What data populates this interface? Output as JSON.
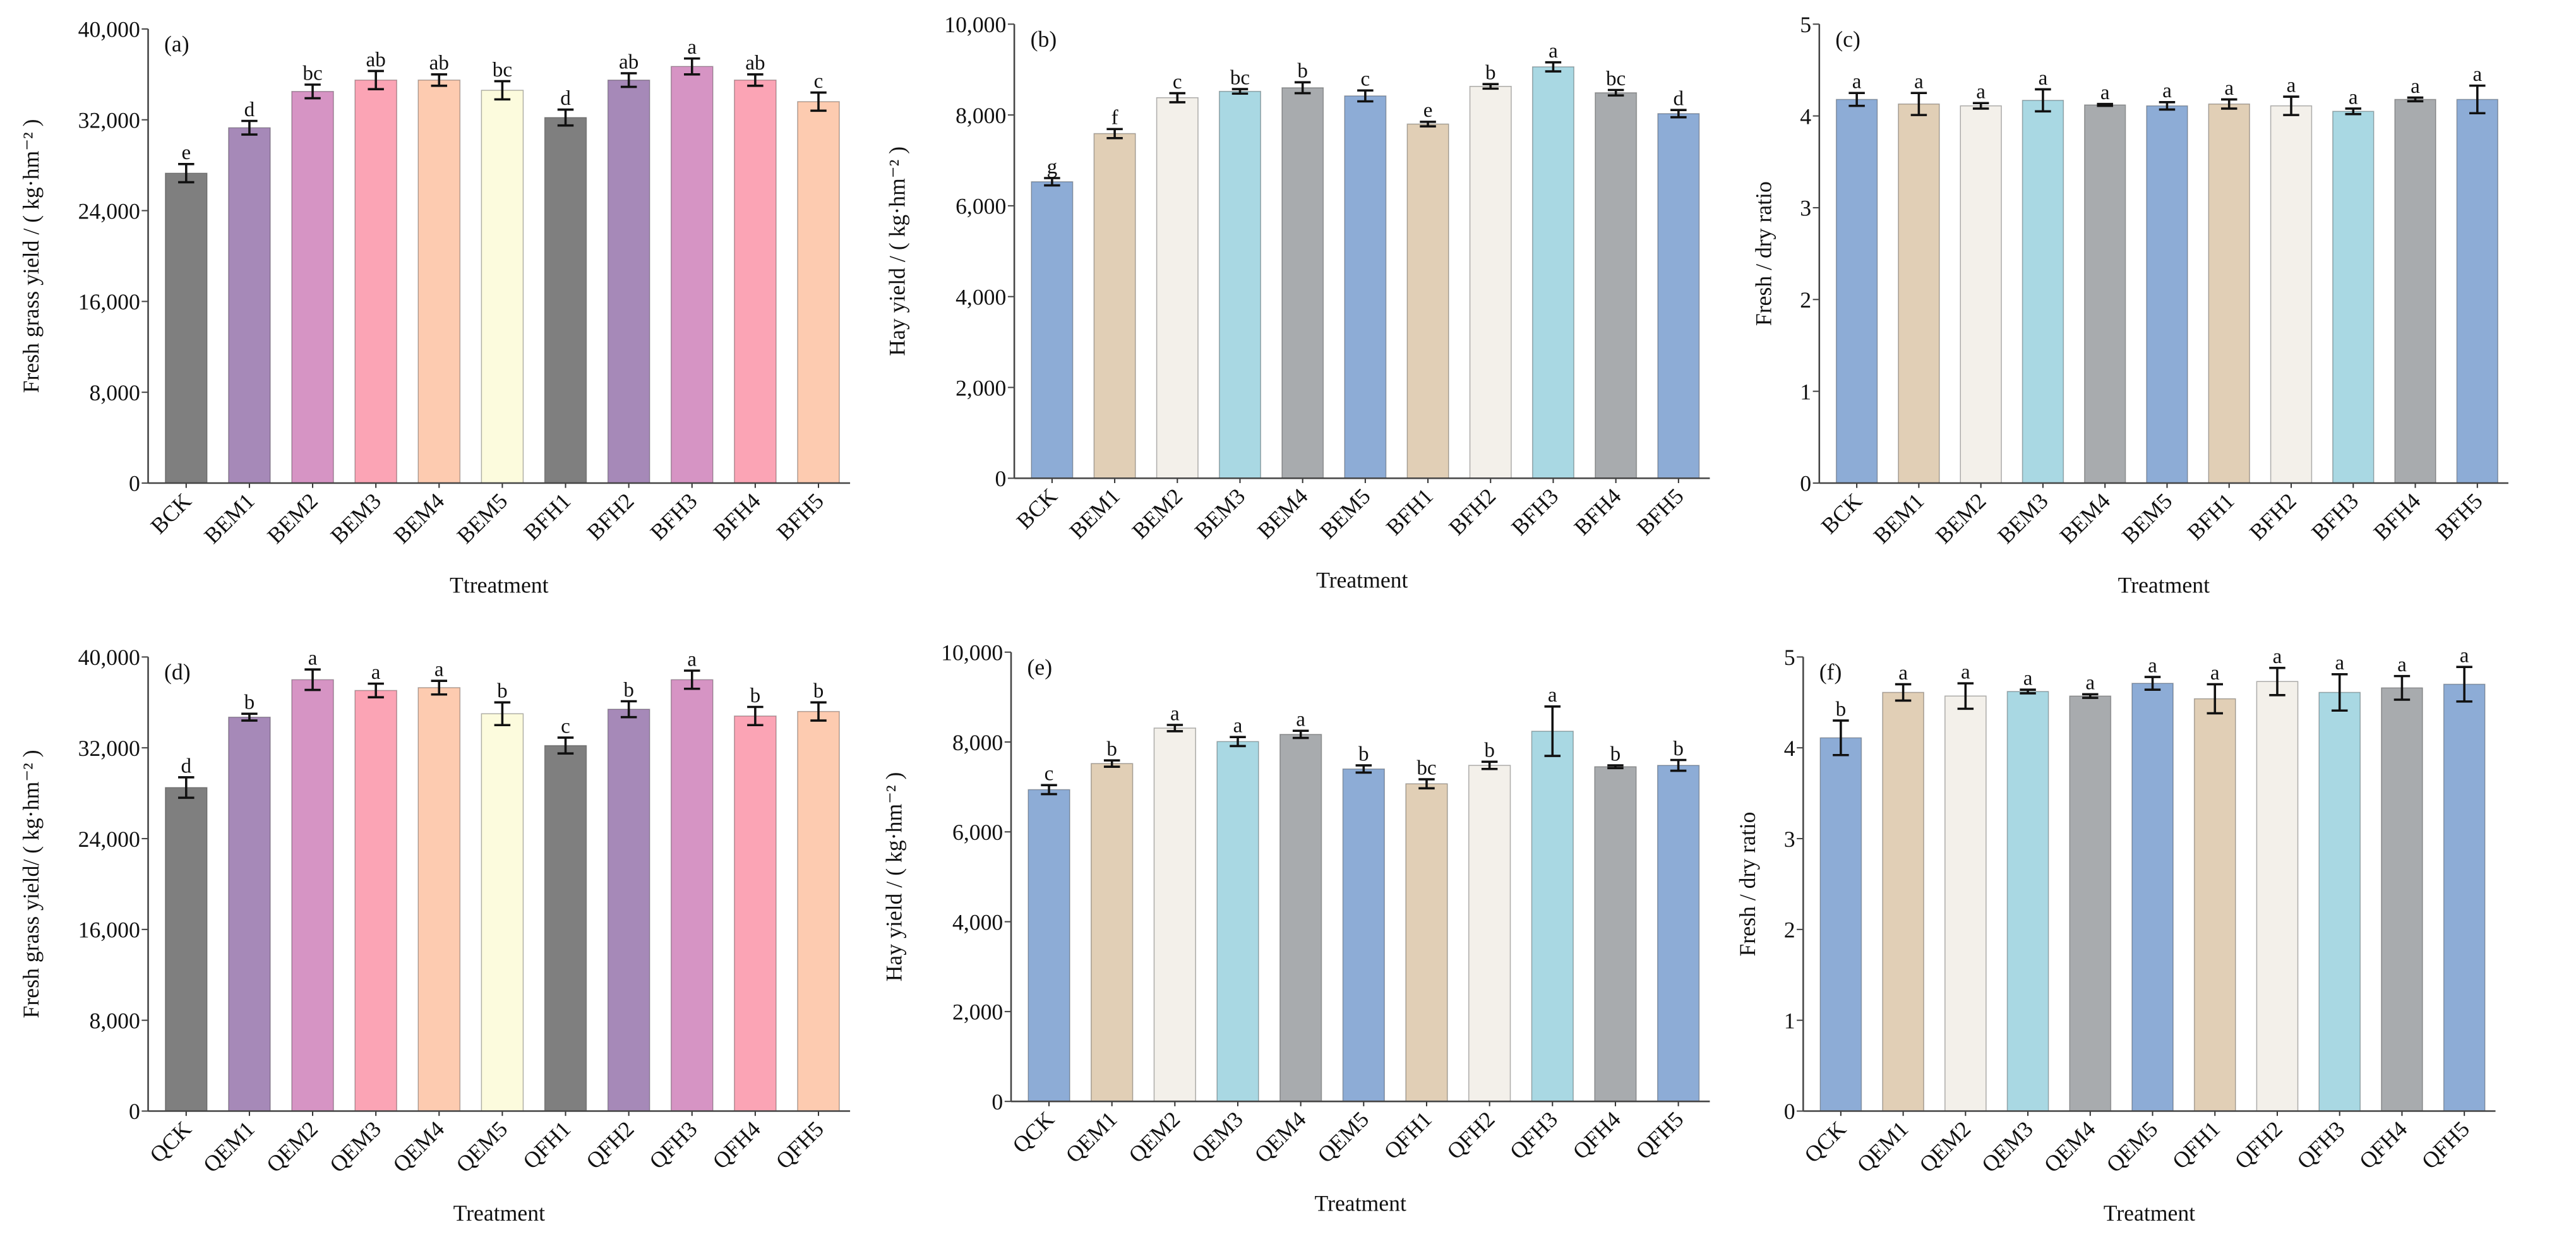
{
  "colors": {
    "dark_gray": "#7f7f7f",
    "purple": "#a689b8",
    "pink": "#d694c4",
    "rose": "#fba4b5",
    "peach": "#fdcbb0",
    "cream": "#fcfbdd",
    "blue": "#8dacd6",
    "tan": "#e1cfb6",
    "off_white": "#f3f0ea",
    "cyan": "#a9d8e3",
    "gray": "#a8abae"
  },
  "chart_data": [
    {
      "type": "bar",
      "panel": "(a)",
      "categories": [
        "BCK",
        "BEM1",
        "BEM2",
        "BEM3",
        "BEM4",
        "BEM5",
        "BFH1",
        "BFH2",
        "BFH3",
        "BFH4",
        "BFH5"
      ],
      "values": [
        27300,
        31300,
        34500,
        35500,
        35500,
        34600,
        32200,
        35500,
        36700,
        35500,
        33600
      ],
      "errors": [
        800,
        600,
        600,
        800,
        500,
        800,
        700,
        600,
        700,
        500,
        800
      ],
      "letters": [
        "e",
        "d",
        "bc",
        "ab",
        "ab",
        "bc",
        "d",
        "ab",
        "a",
        "ab",
        "c"
      ],
      "bar_colors": [
        "#7f7f7f",
        "#a689b8",
        "#d694c4",
        "#fba4b5",
        "#fdcbb0",
        "#fcfbdd",
        "#7f7f7f",
        "#a689b8",
        "#d694c4",
        "#fba4b5",
        "#fdcbb0"
      ],
      "xlabel": "Ttreatment",
      "ylabel": "Fresh grass yield / ( kg·hm⁻² )",
      "ylim": [
        0,
        40000
      ],
      "yticks": [
        0,
        8000,
        16000,
        24000,
        32000,
        40000
      ],
      "grid": false
    },
    {
      "type": "bar",
      "panel": "(b)",
      "categories": [
        "BCK",
        "BEM1",
        "BEM2",
        "BEM3",
        "BEM4",
        "BEM5",
        "BFH1",
        "BFH2",
        "BFH3",
        "BFH4",
        "BFH5"
      ],
      "values": [
        6530,
        7590,
        8380,
        8520,
        8600,
        8420,
        7800,
        8630,
        9060,
        8490,
        8030
      ],
      "errors": [
        80,
        100,
        100,
        50,
        120,
        120,
        50,
        50,
        100,
        60,
        80
      ],
      "letters": [
        "g",
        "f",
        "c",
        "bc",
        "b",
        "c",
        "e",
        "b",
        "a",
        "bc",
        "d"
      ],
      "bar_colors": [
        "#8dacd6",
        "#e1cfb6",
        "#f3f0ea",
        "#a9d8e3",
        "#a8abae",
        "#8dacd6",
        "#e1cfb6",
        "#f3f0ea",
        "#a9d8e3",
        "#a8abae",
        "#8dacd6"
      ],
      "xlabel": "Treatment",
      "ylabel": "Hay yield / ( kg·hm⁻² )",
      "ylim": [
        0,
        10000
      ],
      "yticks": [
        0,
        2000,
        4000,
        6000,
        8000,
        10000
      ],
      "grid": false
    },
    {
      "type": "bar",
      "panel": "(c)",
      "categories": [
        "BCK",
        "BEM1",
        "BEM2",
        "BEM3",
        "BEM4",
        "BEM5",
        "BFH1",
        "BFH2",
        "BFH3",
        "BFH4",
        "BFH5"
      ],
      "values": [
        4.18,
        4.13,
        4.11,
        4.17,
        4.12,
        4.11,
        4.13,
        4.11,
        4.05,
        4.18,
        4.18
      ],
      "errors": [
        0.07,
        0.12,
        0.03,
        0.12,
        0.01,
        0.04,
        0.05,
        0.1,
        0.03,
        0.02,
        0.15
      ],
      "letters": [
        "a",
        "a",
        "a",
        "a",
        "a",
        "a",
        "a",
        "a",
        "a",
        "a",
        "a"
      ],
      "bar_colors": [
        "#8dacd6",
        "#e1cfb6",
        "#f3f0ea",
        "#a9d8e3",
        "#a8abae",
        "#8dacd6",
        "#e1cfb6",
        "#f3f0ea",
        "#a9d8e3",
        "#a8abae",
        "#8dacd6"
      ],
      "xlabel": "Treatment",
      "ylabel": "Fresh / dry ratio",
      "ylim": [
        0,
        5
      ],
      "yticks": [
        0,
        1,
        2,
        3,
        4,
        5
      ],
      "grid": false
    },
    {
      "type": "bar",
      "panel": "(d)",
      "categories": [
        "QCK",
        "QEM1",
        "QEM2",
        "QEM3",
        "QEM4",
        "QEM5",
        "QFH1",
        "QFH2",
        "QFH3",
        "QFH4",
        "QFH5"
      ],
      "values": [
        28500,
        34700,
        38000,
        37050,
        37300,
        35000,
        32200,
        35400,
        38000,
        34800,
        35200
      ],
      "errors": [
        900,
        300,
        900,
        600,
        600,
        1000,
        700,
        700,
        800,
        800,
        800
      ],
      "letters": [
        "d",
        "b",
        "a",
        "a",
        "a",
        "b",
        "c",
        "b",
        "a",
        "b",
        "b"
      ],
      "bar_colors": [
        "#7f7f7f",
        "#a689b8",
        "#d694c4",
        "#fba4b5",
        "#fdcbb0",
        "#fcfbdd",
        "#7f7f7f",
        "#a689b8",
        "#d694c4",
        "#fba4b5",
        "#fdcbb0"
      ],
      "xlabel": "Treatment",
      "ylabel": "Fresh grass yield/ ( kg·hm⁻² )",
      "ylim": [
        0,
        40000
      ],
      "yticks": [
        0,
        8000,
        16000,
        24000,
        32000,
        40000
      ],
      "grid": false
    },
    {
      "type": "bar",
      "panel": "(e)",
      "categories": [
        "QCK",
        "QEM1",
        "QEM2",
        "QEM3",
        "QEM4",
        "QEM5",
        "QFH1",
        "QFH2",
        "QFH3",
        "QFH4",
        "QFH5"
      ],
      "values": [
        6940,
        7520,
        8310,
        8010,
        8170,
        7400,
        7070,
        7480,
        8240,
        7450,
        7480
      ],
      "errors": [
        100,
        70,
        70,
        100,
        80,
        80,
        100,
        80,
        550,
        30,
        120
      ],
      "letters": [
        "c",
        "b",
        "a",
        "a",
        "a",
        "b",
        "bc",
        "b",
        "a",
        "b",
        "b"
      ],
      "bar_colors": [
        "#8dacd6",
        "#e1cfb6",
        "#f3f0ea",
        "#a9d8e3",
        "#a8abae",
        "#8dacd6",
        "#e1cfb6",
        "#f3f0ea",
        "#a9d8e3",
        "#a8abae",
        "#8dacd6"
      ],
      "xlabel": "Treatment",
      "ylabel": "Hay yield / ( kg·hm⁻² )",
      "ylim": [
        0,
        10000
      ],
      "yticks": [
        0,
        2000,
        4000,
        6000,
        8000,
        10000
      ],
      "grid": false
    },
    {
      "type": "bar",
      "panel": "(f)",
      "categories": [
        "QCK",
        "QEM1",
        "QEM2",
        "QEM3",
        "QEM4",
        "QEM5",
        "QFH1",
        "QFH2",
        "QFH3",
        "QFH4",
        "QFH5"
      ],
      "values": [
        4.11,
        4.61,
        4.57,
        4.62,
        4.57,
        4.71,
        4.54,
        4.73,
        4.61,
        4.66,
        4.7
      ],
      "errors": [
        0.19,
        0.09,
        0.14,
        0.02,
        0.02,
        0.07,
        0.16,
        0.15,
        0.2,
        0.13,
        0.19
      ],
      "letters": [
        "b",
        "a",
        "a",
        "a",
        "a",
        "a",
        "a",
        "a",
        "a",
        "a",
        "a"
      ],
      "bar_colors": [
        "#8dacd6",
        "#e1cfb6",
        "#f3f0ea",
        "#a9d8e3",
        "#a8abae",
        "#8dacd6",
        "#e1cfb6",
        "#f3f0ea",
        "#a9d8e3",
        "#a8abae",
        "#8dacd6"
      ],
      "xlabel": "Treatment",
      "ylabel": "Fresh / dry ratio",
      "ylim": [
        0,
        5
      ],
      "yticks": [
        0,
        1,
        2,
        3,
        4,
        5
      ],
      "grid": false
    }
  ]
}
